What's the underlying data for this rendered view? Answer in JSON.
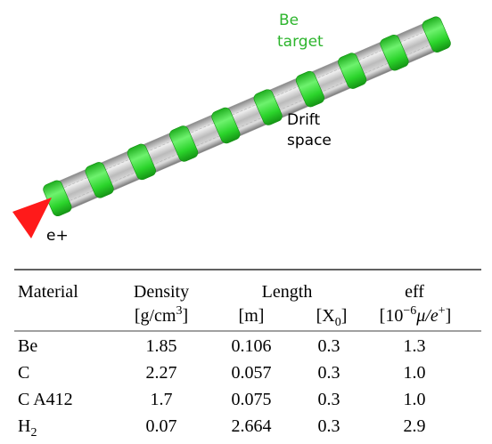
{
  "diagram": {
    "be_target": [
      "Be",
      "target"
    ],
    "drift_space": [
      "Drift",
      "space"
    ],
    "beam": "e+"
  },
  "table": {
    "header": [
      "Material",
      "Density",
      "Length",
      "eff"
    ],
    "units": {
      "density": [
        "[g/cm",
        "3",
        "]"
      ],
      "length_m": "[m]",
      "length_x0": [
        "[X",
        "0",
        "]"
      ],
      "eff": [
        "[10",
        "−6",
        "μ/e",
        "+",
        "]"
      ]
    },
    "rows": [
      {
        "material": "Be",
        "cells": [
          "1.85",
          "0.106",
          "0.3",
          "1.3"
        ]
      },
      {
        "material": "C",
        "cells": [
          "2.27",
          "0.057",
          "0.3",
          "1.0"
        ]
      },
      {
        "material": "C A412",
        "cells": [
          "1.7",
          "0.075",
          "0.3",
          "1.0"
        ]
      },
      {
        "material": "H",
        "material_sub": "2",
        "cells": [
          "0.07",
          "2.664",
          "0.3",
          "2.9"
        ]
      }
    ]
  }
}
